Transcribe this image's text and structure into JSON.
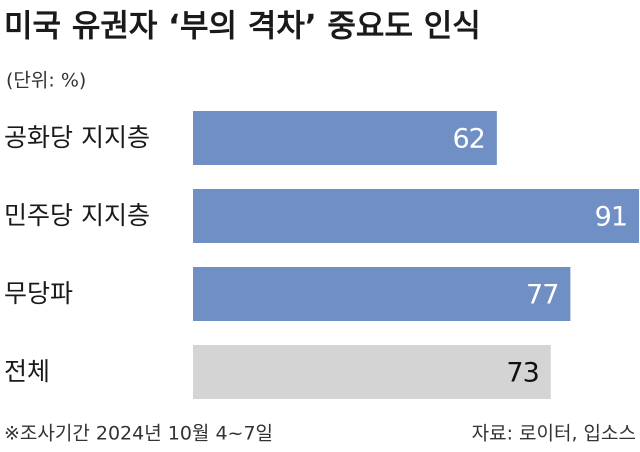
{
  "chart_data": {
    "type": "hbar",
    "title": "미국 유권자 ‘부의 격차’ 중요도 인식",
    "subtitle": "(단위: %)",
    "categories": [
      "공화당 지지층",
      "민주당 지지층",
      "무당파",
      "전체"
    ],
    "values": [
      62,
      91,
      77,
      73
    ],
    "colors": [
      "#6f8fc5",
      "#6f8fc5",
      "#6f8fc5",
      "#d4d4d4"
    ],
    "footnote": "※조사기간 2024년 10월 4~7일",
    "source": "자료: 로이터, 입소스"
  }
}
